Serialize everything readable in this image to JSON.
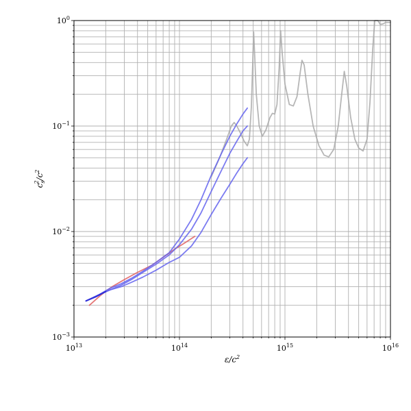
{
  "chart_data": {
    "type": "line",
    "title": "",
    "xlabel": "ε/c²",
    "ylabel": "c_s²/c²",
    "xscale": "log",
    "yscale": "log",
    "xlim": [
      10000000000000.0,
      1e+16
    ],
    "ylim": [
      0.001,
      1
    ],
    "grid": "major and minor",
    "legend": "none",
    "x_ticks": [
      {
        "base": "10",
        "exp": "13"
      },
      {
        "base": "10",
        "exp": "14"
      },
      {
        "base": "10",
        "exp": "15"
      },
      {
        "base": "10",
        "exp": "16"
      }
    ],
    "y_ticks": [
      {
        "base": "10",
        "exp": "−3"
      },
      {
        "base": "10",
        "exp": "−2"
      },
      {
        "base": "10",
        "exp": "−1"
      },
      {
        "base": "10",
        "exp": "0"
      }
    ],
    "colors": {
      "gray": "#a9a9a9",
      "red": "#e06060",
      "blue": "#6464ee",
      "dark_blue": "#2e2ed8"
    },
    "series": [
      {
        "color": "gray",
        "points": [
          [
            200000000000000.0,
            0.033
          ],
          [
            240000000000000.0,
            0.05
          ],
          [
            280000000000000.0,
            0.075
          ],
          [
            310000000000000.0,
            0.1
          ],
          [
            330000000000000.0,
            0.108
          ],
          [
            350000000000000.0,
            0.1
          ],
          [
            380000000000000.0,
            0.085
          ],
          [
            410000000000000.0,
            0.072
          ],
          [
            440000000000000.0,
            0.065
          ],
          [
            460000000000000.0,
            0.075
          ],
          [
            480000000000000.0,
            0.15
          ],
          [
            495000000000000.0,
            0.4
          ],
          [
            505000000000000.0,
            0.78
          ],
          [
            515000000000000.0,
            0.5
          ],
          [
            535000000000000.0,
            0.2
          ],
          [
            570000000000000.0,
            0.1
          ],
          [
            610000000000000.0,
            0.08
          ],
          [
            660000000000000.0,
            0.092
          ],
          [
            720000000000000.0,
            0.12
          ],
          [
            760000000000000.0,
            0.132
          ],
          [
            800000000000000.0,
            0.13
          ],
          [
            840000000000000.0,
            0.16
          ],
          [
            880000000000000.0,
            0.35
          ],
          [
            910000000000000.0,
            0.8
          ],
          [
            940000000000000.0,
            0.5
          ],
          [
            1000000000000000.0,
            0.25
          ],
          [
            1100000000000000.0,
            0.16
          ],
          [
            1200000000000000.0,
            0.155
          ],
          [
            1300000000000000.0,
            0.19
          ],
          [
            1400000000000000.0,
            0.33
          ],
          [
            1450000000000000.0,
            0.42
          ],
          [
            1520000000000000.0,
            0.38
          ],
          [
            1650000000000000.0,
            0.2
          ],
          [
            1850000000000000.0,
            0.1
          ],
          [
            2100000000000000.0,
            0.065
          ],
          [
            2350000000000000.0,
            0.053
          ],
          [
            2600000000000000.0,
            0.051
          ],
          [
            2900000000000000.0,
            0.06
          ],
          [
            3200000000000000.0,
            0.1
          ],
          [
            3450000000000000.0,
            0.2
          ],
          [
            3650000000000000.0,
            0.33
          ],
          [
            3850000000000000.0,
            0.24
          ],
          [
            4200000000000000.0,
            0.12
          ],
          [
            4600000000000000.0,
            0.075
          ],
          [
            5000000000000000.0,
            0.062
          ],
          [
            5500000000000000.0,
            0.058
          ],
          [
            6000000000000000.0,
            0.075
          ],
          [
            6400000000000000.0,
            0.17
          ],
          [
            6800000000000000.0,
            0.55
          ],
          [
            7100000000000000.0,
            1.0
          ],
          [
            7600000000000000.0,
            1.0
          ],
          [
            8000000000000000.0,
            0.92
          ],
          [
            8500000000000000.0,
            0.93
          ],
          [
            9000000000000000.0,
            0.96
          ],
          [
            1e+16,
            0.96
          ]
        ]
      },
      {
        "color": "red",
        "points": [
          [
            14000000000000.0,
            0.002
          ],
          [
            18000000000000.0,
            0.0025
          ],
          [
            23000000000000.0,
            0.003
          ],
          [
            30000000000000.0,
            0.0035
          ],
          [
            40000000000000.0,
            0.0041
          ],
          [
            55000000000000.0,
            0.0048
          ],
          [
            70000000000000.0,
            0.0057
          ],
          [
            90000000000000.0,
            0.0068
          ],
          [
            110000000000000.0,
            0.0077
          ],
          [
            140000000000000.0,
            0.009
          ]
        ]
      },
      {
        "color": "blue",
        "points": [
          [
            13000000000000.0,
            0.0022
          ],
          [
            17000000000000.0,
            0.0025
          ],
          [
            22000000000000.0,
            0.0029
          ],
          [
            28000000000000.0,
            0.0032
          ],
          [
            35000000000000.0,
            0.0036
          ],
          [
            45000000000000.0,
            0.0042
          ],
          [
            60000000000000.0,
            0.0051
          ],
          [
            80000000000000.0,
            0.0063
          ],
          [
            100000000000000.0,
            0.0085
          ],
          [
            130000000000000.0,
            0.013
          ],
          [
            160000000000000.0,
            0.02
          ],
          [
            200000000000000.0,
            0.034
          ],
          [
            250000000000000.0,
            0.055
          ],
          [
            300000000000000.0,
            0.08
          ],
          [
            350000000000000.0,
            0.105
          ],
          [
            400000000000000.0,
            0.13
          ],
          [
            440000000000000.0,
            0.148
          ]
        ]
      },
      {
        "color": "blue",
        "points": [
          [
            13000000000000.0,
            0.0022
          ],
          [
            17000000000000.0,
            0.0025
          ],
          [
            22000000000000.0,
            0.0028
          ],
          [
            28000000000000.0,
            0.0031
          ],
          [
            35000000000000.0,
            0.0035
          ],
          [
            45000000000000.0,
            0.0041
          ],
          [
            60000000000000.0,
            0.0049
          ],
          [
            80000000000000.0,
            0.006
          ],
          [
            100000000000000.0,
            0.0075
          ],
          [
            130000000000000.0,
            0.0105
          ],
          [
            160000000000000.0,
            0.015
          ],
          [
            200000000000000.0,
            0.024
          ],
          [
            250000000000000.0,
            0.038
          ],
          [
            300000000000000.0,
            0.055
          ],
          [
            350000000000000.0,
            0.072
          ],
          [
            400000000000000.0,
            0.09
          ],
          [
            440000000000000.0,
            0.1
          ]
        ]
      },
      {
        "color": "blue",
        "points": [
          [
            13000000000000.0,
            0.0022
          ],
          [
            17000000000000.0,
            0.0025
          ],
          [
            22000000000000.0,
            0.0028
          ],
          [
            28000000000000.0,
            0.003
          ],
          [
            35000000000000.0,
            0.0033
          ],
          [
            45000000000000.0,
            0.0037
          ],
          [
            60000000000000.0,
            0.0043
          ],
          [
            80000000000000.0,
            0.0051
          ],
          [
            100000000000000.0,
            0.0057
          ],
          [
            130000000000000.0,
            0.0073
          ],
          [
            160000000000000.0,
            0.0098
          ],
          [
            200000000000000.0,
            0.0145
          ],
          [
            250000000000000.0,
            0.021
          ],
          [
            300000000000000.0,
            0.028
          ],
          [
            350000000000000.0,
            0.036
          ],
          [
            400000000000000.0,
            0.044
          ],
          [
            440000000000000.0,
            0.05
          ]
        ]
      },
      {
        "color": "dark_blue",
        "points": [
          [
            13000000000000.0,
            0.0022
          ],
          [
            16000000000000.0,
            0.0024
          ],
          [
            20000000000000.0,
            0.0027
          ]
        ]
      }
    ]
  }
}
